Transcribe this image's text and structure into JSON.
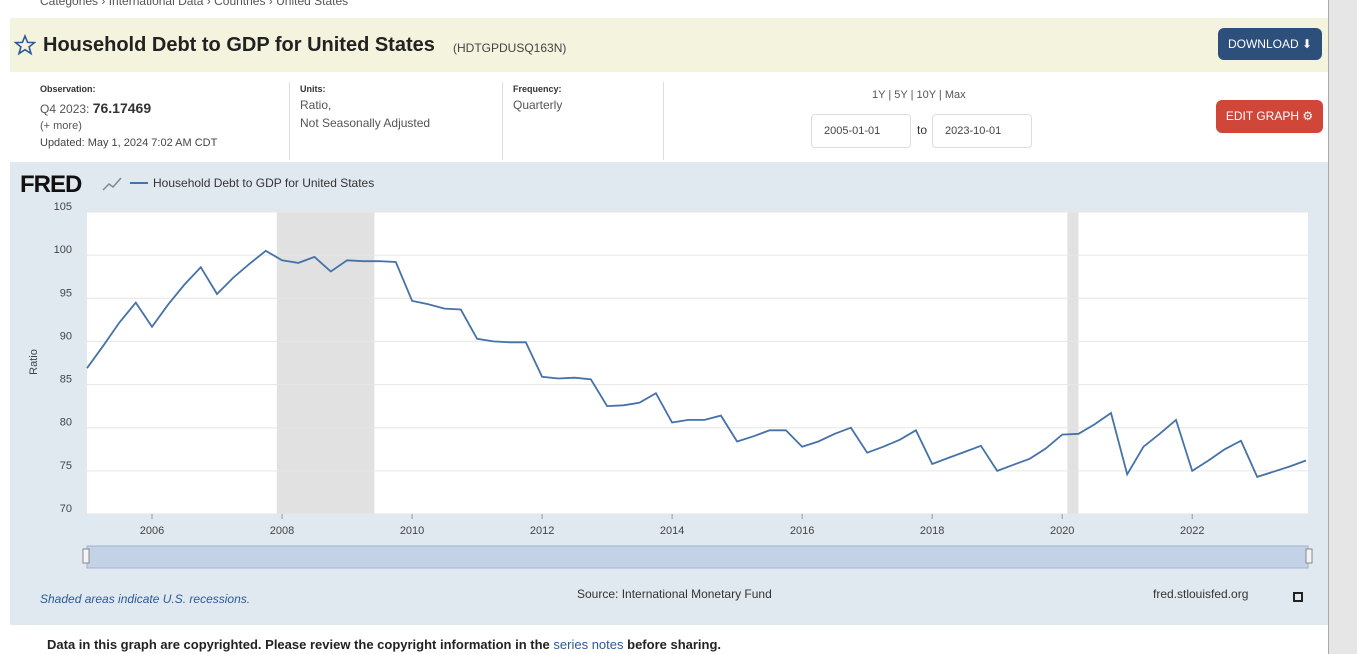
{
  "breadcrumb": [
    "Categories",
    "International Data",
    "Countries",
    "United States"
  ],
  "header": {
    "title": "Household Debt to GDP for United States",
    "series_id": "(HDTGPDUSQ163N)",
    "download": "DOWNLOAD",
    "edit_graph": "EDIT GRAPH"
  },
  "observation": {
    "label": "Observation:",
    "period": "Q4 2023:",
    "value": "76.17469",
    "more": "(+ more)",
    "updated": "Updated: May 1, 2024 7:02 AM CDT"
  },
  "units": {
    "label": "Units:",
    "lines": [
      "Ratio,",
      "Not Seasonally Adjusted"
    ]
  },
  "frequency": {
    "label": "Frequency:",
    "value": "Quarterly"
  },
  "range": {
    "presets": [
      "1Y",
      "5Y",
      "10Y",
      "Max"
    ],
    "start": "2005-01-01",
    "to": "to",
    "end": "2023-10-01"
  },
  "chart_data": {
    "type": "line",
    "logo": "FRED",
    "ylabel": "Ratio",
    "grid": true,
    "x": [
      2005,
      2005.25,
      2005.5,
      2005.75,
      2006,
      2006.25,
      2006.5,
      2006.75,
      2007,
      2007.25,
      2007.5,
      2007.75,
      2008,
      2008.25,
      2008.5,
      2008.75,
      2009,
      2009.25,
      2009.5,
      2009.75,
      2010,
      2010.25,
      2010.5,
      2010.75,
      2011,
      2011.25,
      2011.5,
      2011.75,
      2012,
      2012.25,
      2012.5,
      2012.75,
      2013,
      2013.25,
      2013.5,
      2013.75,
      2014,
      2014.25,
      2014.5,
      2014.75,
      2015,
      2015.25,
      2015.5,
      2015.75,
      2016,
      2016.25,
      2016.5,
      2016.75,
      2017,
      2017.25,
      2017.5,
      2017.75,
      2018,
      2018.25,
      2018.5,
      2018.75,
      2019,
      2019.25,
      2019.5,
      2019.75,
      2020,
      2020.25,
      2020.5,
      2020.75,
      2021,
      2021.25,
      2021.5,
      2021.75,
      2022,
      2022.25,
      2022.5,
      2022.75,
      2023,
      2023.25,
      2023.5,
      2023.75
    ],
    "series": [
      {
        "name": "Household Debt to GDP for United States",
        "color": "#4572a7",
        "values": [
          86.9,
          89.5,
          92.2,
          94.5,
          91.7,
          94.3,
          96.6,
          98.6,
          95.5,
          97.4,
          99.0,
          100.5,
          99.4,
          99.1,
          99.8,
          98.1,
          99.4,
          99.3,
          99.3,
          99.2,
          94.7,
          94.3,
          93.8,
          93.7,
          90.3,
          90.0,
          89.9,
          89.9,
          85.9,
          85.7,
          85.8,
          85.6,
          82.5,
          82.6,
          82.9,
          84.0,
          80.6,
          80.9,
          80.9,
          81.4,
          78.4,
          79.0,
          79.7,
          79.7,
          77.8,
          78.4,
          79.3,
          80.0,
          77.1,
          77.8,
          78.6,
          79.7,
          75.8,
          76.5,
          77.2,
          77.9,
          75.0,
          75.7,
          76.4,
          77.6,
          79.2,
          79.3,
          80.4,
          81.7,
          74.6,
          77.8,
          79.3,
          80.9,
          75.0,
          76.2,
          77.5,
          78.5,
          74.3,
          74.9,
          75.5,
          76.2
        ]
      }
    ],
    "xlim": [
      2005,
      2023.75
    ],
    "xticks": [
      2006,
      2008,
      2010,
      2012,
      2014,
      2016,
      2018,
      2020,
      2022
    ],
    "ylim": [
      70,
      105
    ],
    "yticks": [
      70,
      75,
      80,
      85,
      90,
      95,
      100,
      105
    ],
    "recessions": [
      [
        2007.92,
        2009.42
      ],
      [
        2020.08,
        2020.25
      ]
    ],
    "note": "Shaded areas indicate U.S. recessions.",
    "source": "Source: International Monetary Fund",
    "site": "fred.stlouisfed.org"
  },
  "footer": {
    "text_before": "Data in this graph are copyrighted. Please review the copyright information in the",
    "link": "series notes",
    "text_after": "before sharing."
  }
}
